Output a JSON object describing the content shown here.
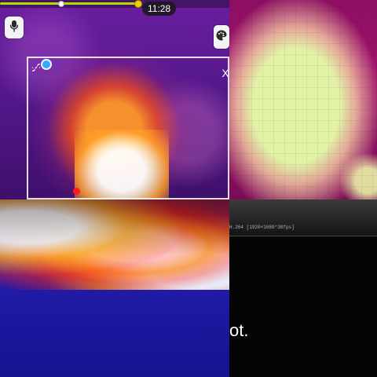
{
  "video_ui": {
    "time_label": "11:28",
    "progress": 0.6
  },
  "icons": {
    "microphone": "microphone-icon",
    "palette": "palette-icon",
    "link": "link-icon",
    "close": "close-icon"
  },
  "overlay": {
    "close_label": "X"
  },
  "bottom_right_panel": {
    "caption": "H.264 [1920×1080*30fps]",
    "partial_text": "ot."
  }
}
